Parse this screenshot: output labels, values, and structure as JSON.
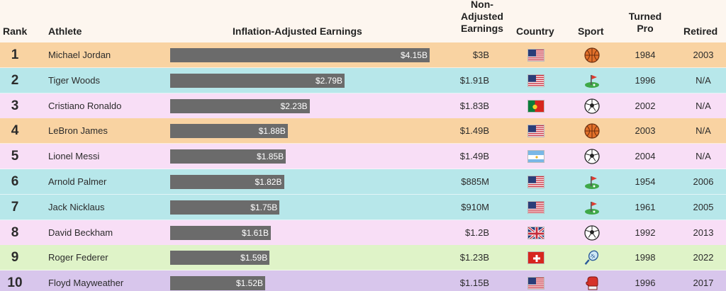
{
  "header": {
    "rank": "Rank",
    "athlete": "Athlete",
    "inflation": "Inflation-Adjusted Earnings",
    "nonadj_1": "Non-",
    "nonadj_2": "Adjusted",
    "nonadj_3": "Earnings",
    "country": "Country",
    "sport": "Sport",
    "turned_1": "Turned",
    "turned_2": "Pro",
    "retired": "Retired"
  },
  "colors": {
    "orange": "#f9d3a2",
    "cyan": "#b7e7ea",
    "pink": "#f8def6",
    "green": "#dff3c8",
    "purple": "#d8c6ec",
    "bar": "#6b6b6b"
  },
  "chart_data": {
    "type": "table",
    "bar_max": 4.15,
    "rows": [
      {
        "rank": "1",
        "athlete": "Michael Jordan",
        "inflation_value": 4.15,
        "inflation_label": "$4.15B",
        "nonadj": "$3B",
        "country_icon": "us-flag",
        "sport_icon": "basketball-icon",
        "turned_pro": "1984",
        "retired": "2003",
        "bg": "orange"
      },
      {
        "rank": "2",
        "athlete": "Tiger Woods",
        "inflation_value": 2.79,
        "inflation_label": "$2.79B",
        "nonadj": "$1.91B",
        "country_icon": "us-flag",
        "sport_icon": "golf-icon",
        "turned_pro": "1996",
        "retired": "N/A",
        "bg": "cyan"
      },
      {
        "rank": "3",
        "athlete": "Cristiano Ronaldo",
        "inflation_value": 2.23,
        "inflation_label": "$2.23B",
        "nonadj": "$1.83B",
        "country_icon": "portugal-flag",
        "sport_icon": "soccer-ball-icon",
        "turned_pro": "2002",
        "retired": "N/A",
        "bg": "pink"
      },
      {
        "rank": "4",
        "athlete": "LeBron James",
        "inflation_value": 1.88,
        "inflation_label": "$1.88B",
        "nonadj": "$1.49B",
        "country_icon": "us-flag",
        "sport_icon": "basketball-icon",
        "turned_pro": "2003",
        "retired": "N/A",
        "bg": "orange"
      },
      {
        "rank": "5",
        "athlete": "Lionel Messi",
        "inflation_value": 1.85,
        "inflation_label": "$1.85B",
        "nonadj": "$1.49B",
        "country_icon": "argentina-flag",
        "sport_icon": "soccer-ball-icon",
        "turned_pro": "2004",
        "retired": "N/A",
        "bg": "pink"
      },
      {
        "rank": "6",
        "athlete": "Arnold Palmer",
        "inflation_value": 1.82,
        "inflation_label": "$1.82B",
        "nonadj": "$885M",
        "country_icon": "us-flag",
        "sport_icon": "golf-icon",
        "turned_pro": "1954",
        "retired": "2006",
        "bg": "cyan"
      },
      {
        "rank": "7",
        "athlete": "Jack Nicklaus",
        "inflation_value": 1.75,
        "inflation_label": "$1.75B",
        "nonadj": "$910M",
        "country_icon": "us-flag",
        "sport_icon": "golf-icon",
        "turned_pro": "1961",
        "retired": "2005",
        "bg": "cyan"
      },
      {
        "rank": "8",
        "athlete": "David Beckham",
        "inflation_value": 1.61,
        "inflation_label": "$1.61B",
        "nonadj": "$1.2B",
        "country_icon": "uk-flag",
        "sport_icon": "soccer-ball-icon",
        "turned_pro": "1992",
        "retired": "2013",
        "bg": "pink"
      },
      {
        "rank": "9",
        "athlete": "Roger Federer",
        "inflation_value": 1.59,
        "inflation_label": "$1.59B",
        "nonadj": "$1.23B",
        "country_icon": "switzerland-flag",
        "sport_icon": "tennis-racket-icon",
        "turned_pro": "1998",
        "retired": "2022",
        "bg": "green"
      },
      {
        "rank": "10",
        "athlete": "Floyd Mayweather",
        "inflation_value": 1.52,
        "inflation_label": "$1.52B",
        "nonadj": "$1.15B",
        "country_icon": "us-flag",
        "sport_icon": "boxing-glove-icon",
        "turned_pro": "1996",
        "retired": "2017",
        "bg": "purple"
      }
    ]
  }
}
